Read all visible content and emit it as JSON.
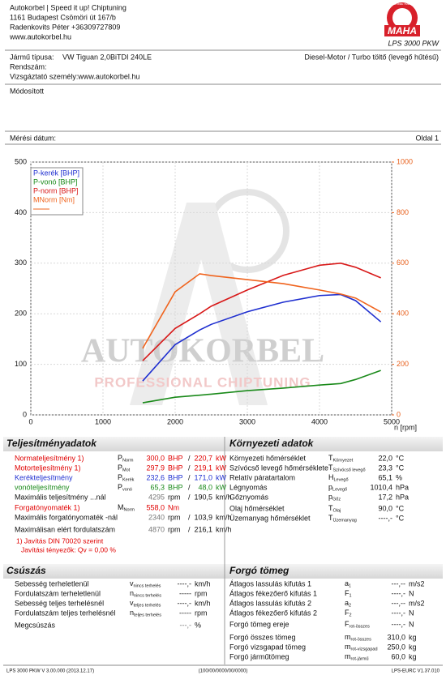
{
  "header": {
    "lines": [
      "Autokorbel | Speed it up! Chiptuning",
      "1161 Budapest Csömöri út 167/b",
      "Radenkovits Péter +36309727809",
      "www.autokorbel.hu"
    ],
    "logo": "MAHA",
    "logo_ring": "Maschinenbau Haldenwang",
    "product": "LPS 3000 PKW"
  },
  "vehicle": {
    "type_label": "Jármű típusa:",
    "type_value": "VW Tiguan 2,0BiTDI 240LE",
    "plate_label": "Rendszám:",
    "examiner": "Vizsgáztató személy:www.autokorbel.hu",
    "engine": "Diesel-Motor / Turbo töltő (levegő hűtésű)",
    "modified": "Módosított",
    "date_label": "Mérési dátum:",
    "page": "Oldal 1"
  },
  "watermark": {
    "brand": "AUTOKORBEL",
    "tagline": "PROFESSIONAL CHIPTUNING"
  },
  "chart_data": {
    "type": "line",
    "x_label": "n [rpm]",
    "x": [
      1550,
      2000,
      2340,
      2500,
      3000,
      3500,
      4000,
      4295,
      4500,
      4850
    ],
    "xlim": [
      0,
      5000
    ],
    "xticks": [
      0,
      1000,
      2000,
      3000,
      4000,
      5000
    ],
    "ylim": [
      0,
      500
    ],
    "yticks": [
      0,
      100,
      200,
      300,
      400,
      500
    ],
    "y2lim": [
      0,
      1000
    ],
    "y2ticks": [
      0,
      200,
      400,
      600,
      800,
      1000
    ],
    "y2_color": "#e8601c",
    "grid": true,
    "legend": "top-left",
    "series": [
      {
        "name": "P-kerék [BHP]",
        "color": "#1f2fd0",
        "values": [
          67,
          139,
          168,
          179,
          204,
          223,
          236,
          238,
          226,
          184
        ]
      },
      {
        "name": "P-vonó [BHP]",
        "color": "#1a8a1a",
        "values": [
          24,
          35,
          39,
          41,
          48,
          53,
          59,
          62,
          70,
          88
        ]
      },
      {
        "name": "P-norm [BHP]",
        "color": "#d81818",
        "values": [
          107,
          171,
          200,
          215,
          247,
          276,
          296,
          300,
          292,
          271
        ]
      },
      {
        "name": "MNorm [Nm]",
        "color": "#f0641e",
        "axis": "y2",
        "values": [
          263,
          487,
          558,
          551,
          535,
          519,
          494,
          478,
          462,
          407
        ]
      }
    ]
  },
  "performance": {
    "title": "Teljesítményadatok",
    "rows": [
      {
        "label": "Normateljesítmény 1)",
        "color": "#e00000",
        "sym": [
          "P",
          "Norm"
        ],
        "v1": "300,0",
        "u1": "BHP",
        "v2": "220,7",
        "u2": "kW"
      },
      {
        "label": "Motorteljesítmény 1)",
        "color": "#e00000",
        "sym": [
          "P",
          "Mot"
        ],
        "v1": "297,9",
        "u1": "BHP",
        "v2": "219,1",
        "u2": "kW"
      },
      {
        "label": "Kerékteljesítmény",
        "color": "#1f2fd0",
        "sym": [
          "P",
          "Kerék"
        ],
        "v1": "232,6",
        "u1": "BHP",
        "v2": "171,0",
        "u2": "kW"
      },
      {
        "label": "vonóteljesítmény",
        "color": "#1a8a1a",
        "sym": [
          "P",
          "vonó"
        ],
        "v1": "65,3",
        "u1": "BHP",
        "v2": "48,0",
        "u2": "kW"
      },
      {
        "label": "Maximális teljesítmény ...nál",
        "v1": "4295",
        "u1": "rpm",
        "v2": "190,5",
        "u2": "km/h"
      },
      {
        "label": "Forgatónyomaték 1)",
        "color": "#e00000",
        "sym": [
          "M",
          "Norm"
        ],
        "v1": "558,0",
        "u1": "Nm"
      },
      {
        "label": "Maximális forgatónyomaték -nál",
        "v1": "2340",
        "u1": "rpm",
        "v2": "103,9",
        "u2": "km/h"
      },
      {
        "label": "Maximálisan elért fordulatszám",
        "v1": "4870",
        "u1": "rpm",
        "v2": "216,1",
        "u2": "km/h"
      }
    ],
    "notes": [
      "1) Javítás DIN 70020 szerint",
      "Javítási tényezők: Qv =  0,00 %"
    ]
  },
  "environment": {
    "title": "Környezeti adatok",
    "rows": [
      {
        "label": "Környezeti hőmérséklet",
        "sym": [
          "T",
          "Környezet"
        ],
        "v1": "22,0",
        "u1": "°C"
      },
      {
        "label": "Szívócső levegő hőmérséklete",
        "sym": [
          "T",
          "Szívócső levegő"
        ],
        "v1": "23,3",
        "u1": "°C"
      },
      {
        "label": "Relatív páratartalom",
        "sym": [
          "H",
          "Levegő"
        ],
        "v1": "65,1",
        "u1": "%"
      },
      {
        "label": "Légnyomás",
        "sym": [
          "p",
          "Levegő"
        ],
        "v1": "1010,4",
        "u1": "hPa"
      },
      {
        "label": "Gőznyomás",
        "sym": [
          "p",
          "Gőz"
        ],
        "v1": "17,2",
        "u1": "hPa"
      },
      {
        "label": "Olaj hőmérséklet",
        "sym": [
          "T",
          "Olaj"
        ],
        "v1": "90,0",
        "u1": "°C"
      },
      {
        "label": "Üzemanyag hőmérséklet",
        "sym": [
          "T",
          "Üzemanyag"
        ],
        "v1": "----,-",
        "u1": "°C"
      }
    ]
  },
  "slip": {
    "title": "Csúszás",
    "rows": [
      {
        "label": "Sebesség terheletlenül",
        "sym": [
          "v",
          "nincs terhelés"
        ],
        "v1": "----,-",
        "u1": "km/h"
      },
      {
        "label": "Fordulatszám terheletlenül",
        "sym": [
          "n",
          "nincs terhelés"
        ],
        "v1": "-----",
        "u1": "rpm"
      },
      {
        "label": "Sebesség teljes terhelésnél",
        "sym": [
          "v",
          "teljes terhelés"
        ],
        "v1": "----,-",
        "u1": "km/h"
      },
      {
        "label": "Fordulatszám teljes terhelésnél",
        "sym": [
          "n",
          "teljes terhelés"
        ],
        "v1": "-----",
        "u1": "rpm"
      },
      {
        "label": "Megcsúszás",
        "v1": "---,-",
        "u1": "%"
      }
    ]
  },
  "rotating": {
    "title": "Forgó tömeg",
    "rows": [
      {
        "label": "Átlagos lassulás kifutás 1",
        "sym": [
          "a",
          "1"
        ],
        "v1": "---,--",
        "u1": "m/s2"
      },
      {
        "label": "Átlagos fékezőerő kifutás 1",
        "sym": [
          "F",
          "1"
        ],
        "v1": "----,-",
        "u1": "N"
      },
      {
        "label": "Átlagos lassulás kifutás 2",
        "sym": [
          "a",
          "2"
        ],
        "v1": "---,--",
        "u1": "m/s2"
      },
      {
        "label": "Átlagos fékezőerő kifutás 2",
        "sym": [
          "F",
          "2"
        ],
        "v1": "----,-",
        "u1": "N"
      },
      {
        "label": "Forgó tömeg ereje",
        "sym": [
          "F",
          "rot-összes"
        ],
        "v1": "----,-",
        "u1": "N"
      },
      {
        "label": "Forgó összes tömeg",
        "sym": [
          "m",
          "rot-összes"
        ],
        "v1": "310,0",
        "u1": "kg"
      },
      {
        "label": "Forgó vizsgapad tömeg",
        "sym": [
          "m",
          "rot-vizsgapad"
        ],
        "v1": "250,0",
        "u1": "kg"
      },
      {
        "label": "Forgó járműtömeg",
        "sym": [
          "m",
          "rot-jármű"
        ],
        "v1": "60,0",
        "u1": "kg"
      }
    ]
  },
  "footer": [
    "LPS 3000 PKW V 3.00.000 (2013.12.17)",
    "(100/00/0000/00/0000)",
    "LPS-EURC V1.37.010"
  ]
}
